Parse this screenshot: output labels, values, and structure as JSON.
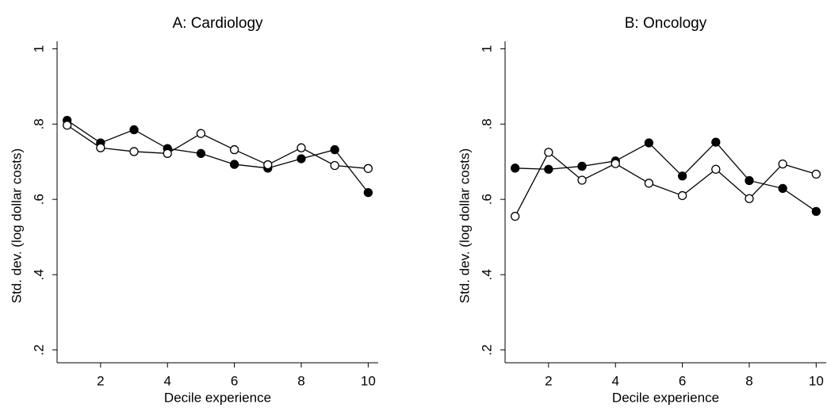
{
  "chart_data": [
    {
      "type": "line",
      "title": "A: Cardiology",
      "x_label": "Decile experience",
      "y_label": "Std. dev. (log dollar costs)",
      "x": [
        1,
        2,
        3,
        4,
        5,
        6,
        7,
        8,
        9,
        10
      ],
      "series": [
        {
          "color": "#000000",
          "marker": "filled",
          "values": [
            0.81,
            0.75,
            0.785,
            0.735,
            0.722,
            0.693,
            0.683,
            0.708,
            0.732,
            0.618
          ]
        },
        {
          "color": "#000000",
          "marker": "open",
          "values": [
            0.797,
            0.737,
            0.727,
            0.722,
            0.775,
            0.732,
            0.692,
            0.737,
            0.69,
            0.682
          ]
        }
      ],
      "xlim": [
        0.7,
        10.3
      ],
      "xticks": [
        2,
        4,
        6,
        8,
        10
      ],
      "ylim": [
        0.166,
        1.02
      ],
      "yticks": [
        {
          "value": 0.2,
          "label": ".2"
        },
        {
          "value": 0.4,
          "label": ".4"
        },
        {
          "value": 0.6,
          "label": ".6"
        },
        {
          "value": 0.8,
          "label": ".8"
        },
        1
      ]
    },
    {
      "type": "line",
      "title": "B: Oncology",
      "x_label": "Decile experience",
      "y_label": "Std. dev. (log dollar costs)",
      "x": [
        1,
        2,
        3,
        4,
        5,
        6,
        7,
        8,
        9,
        10
      ],
      "series": [
        {
          "color": "#000000",
          "marker": "filled",
          "values": [
            0.683,
            0.68,
            0.688,
            0.702,
            0.75,
            0.662,
            0.752,
            0.65,
            0.629,
            0.568
          ]
        },
        {
          "color": "#000000",
          "marker": "open",
          "values": [
            0.555,
            0.725,
            0.651,
            0.695,
            0.643,
            0.61,
            0.68,
            0.602,
            0.694,
            0.667
          ]
        }
      ],
      "xlim": [
        0.7,
        10.3
      ],
      "xticks": [
        2,
        4,
        6,
        8,
        10
      ],
      "ylim": [
        0.166,
        1.02
      ],
      "yticks": [
        {
          "value": 0.2,
          "label": ".2"
        },
        {
          "value": 0.4,
          "label": ".4"
        },
        {
          "value": 0.6,
          "label": ".6"
        },
        {
          "value": 0.8,
          "label": ".8"
        },
        1
      ]
    }
  ]
}
